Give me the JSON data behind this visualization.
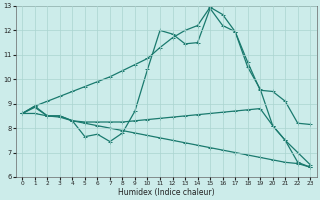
{
  "xlabel": "Humidex (Indice chaleur)",
  "xlim": [
    -0.5,
    23.5
  ],
  "ylim": [
    6,
    13
  ],
  "yticks": [
    6,
    7,
    8,
    9,
    10,
    11,
    12,
    13
  ],
  "xticks": [
    0,
    1,
    2,
    3,
    4,
    5,
    6,
    7,
    8,
    9,
    10,
    11,
    12,
    13,
    14,
    15,
    16,
    17,
    18,
    19,
    20,
    21,
    22,
    23
  ],
  "background_color": "#ccecea",
  "grid_color": "#aad4d0",
  "line_color": "#1a7a6e",
  "lines": [
    {
      "x": [
        0,
        1,
        2,
        3,
        4,
        5,
        6,
        7,
        8,
        9,
        10,
        11,
        12,
        13,
        14,
        15,
        16,
        17,
        18,
        19,
        20,
        21,
        22,
        23
      ],
      "y": [
        8.6,
        8.9,
        9.1,
        9.3,
        9.5,
        9.7,
        9.9,
        10.1,
        10.35,
        10.6,
        10.85,
        11.3,
        11.7,
        12.0,
        12.2,
        12.95,
        12.65,
        11.95,
        10.7,
        9.55,
        9.5,
        9.1,
        8.2,
        8.15
      ]
    },
    {
      "x": [
        0,
        1,
        2,
        3,
        4,
        5,
        6,
        7,
        8,
        9,
        10,
        11,
        12,
        13,
        14,
        15,
        16,
        17,
        18,
        19,
        20,
        21,
        22,
        23
      ],
      "y": [
        8.6,
        8.9,
        8.5,
        8.5,
        8.3,
        7.65,
        7.75,
        7.45,
        7.8,
        8.7,
        10.4,
        12.0,
        11.85,
        11.45,
        11.5,
        12.9,
        12.2,
        11.95,
        10.5,
        9.6,
        8.1,
        7.5,
        6.6,
        6.4
      ]
    },
    {
      "x": [
        0,
        1,
        2,
        3,
        4,
        5,
        6,
        7,
        8,
        9,
        10,
        11,
        12,
        13,
        14,
        15,
        16,
        17,
        18,
        19,
        20,
        21,
        22,
        23
      ],
      "y": [
        8.6,
        8.85,
        8.5,
        8.5,
        8.3,
        8.25,
        8.25,
        8.25,
        8.25,
        8.3,
        8.35,
        8.4,
        8.45,
        8.5,
        8.55,
        8.6,
        8.65,
        8.7,
        8.75,
        8.8,
        8.1,
        7.5,
        7.0,
        6.5
      ]
    },
    {
      "x": [
        0,
        1,
        2,
        3,
        4,
        5,
        6,
        7,
        8,
        9,
        10,
        11,
        12,
        13,
        14,
        15,
        16,
        17,
        18,
        19,
        20,
        21,
        22,
        23
      ],
      "y": [
        8.6,
        8.6,
        8.5,
        8.45,
        8.3,
        8.2,
        8.1,
        8.0,
        7.9,
        7.8,
        7.7,
        7.6,
        7.5,
        7.4,
        7.3,
        7.2,
        7.1,
        7.0,
        6.9,
        6.8,
        6.7,
        6.6,
        6.55,
        6.4
      ]
    }
  ]
}
